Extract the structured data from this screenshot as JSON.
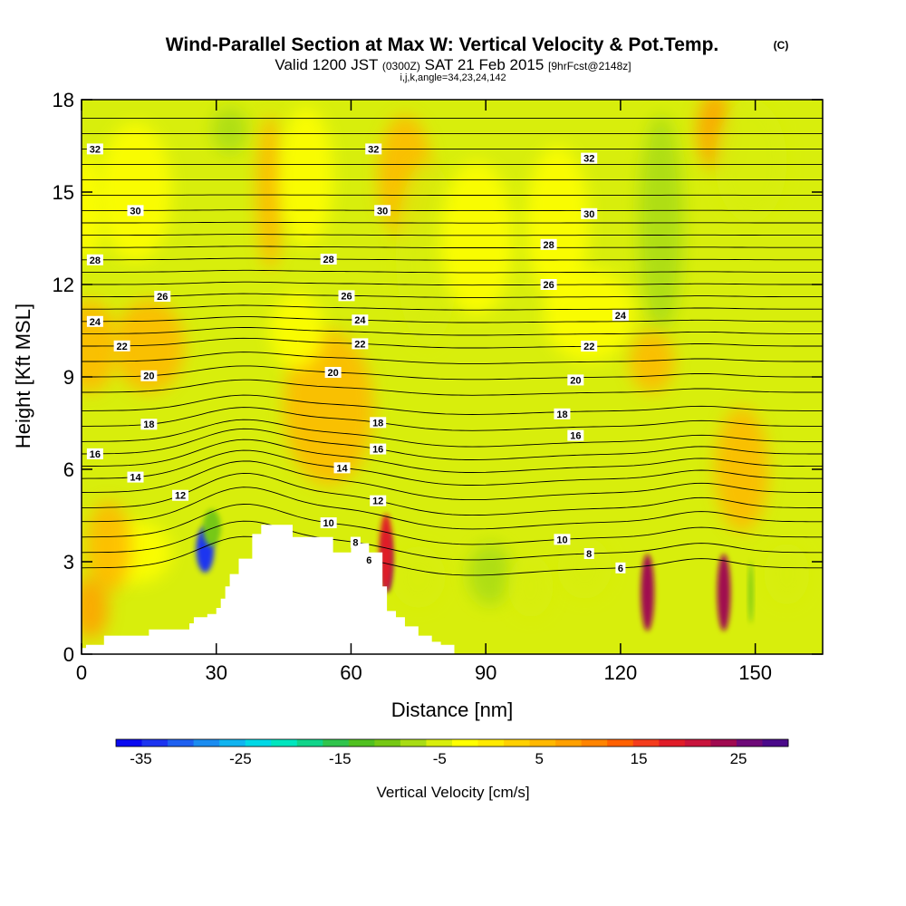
{
  "chart_data": {
    "type": "heatmap",
    "title": "Wind-Parallel Section at Max W: Vertical Velocity & Pot.Temp.",
    "copyright": "(C)",
    "subtitle_valid": "Valid 1200 JST",
    "subtitle_utc": "(0300Z)",
    "subtitle_date": "SAT 21 Feb 2015",
    "subtitle_fcst": "[9hrFcst@2148z]",
    "subtitle_indices": "i,j,k,angle=34,23,24,142",
    "xlabel": "Distance [nm]",
    "ylabel": "Height [Kft MSL]",
    "xlim": [
      0,
      165
    ],
    "ylim": [
      0,
      18
    ],
    "x_ticks": [
      "0",
      "30",
      "60",
      "90",
      "120",
      "150"
    ],
    "y_ticks": [
      "0",
      "3",
      "6",
      "9",
      "12",
      "15",
      "18"
    ],
    "colorbar": {
      "label": "Vertical Velocity [cm/s]",
      "min": -37.5,
      "max": 30,
      "step": 2.5,
      "tick_labels": [
        "-35",
        "-25",
        "-15",
        "-5",
        "5",
        "15",
        "25"
      ],
      "colors": [
        "#0a0af0",
        "#1c34f0",
        "#1e60f0",
        "#1b8cf0",
        "#10b4f0",
        "#00d8e6",
        "#00e6be",
        "#10d48a",
        "#30c44c",
        "#50c020",
        "#76c814",
        "#a8dc14",
        "#d8ee0c",
        "#ffff00",
        "#ffea00",
        "#ffd000",
        "#ffb800",
        "#ffa000",
        "#ff8400",
        "#ff6000",
        "#f43c1c",
        "#e01c28",
        "#c8143c",
        "#a00a50",
        "#6e0a78",
        "#4a0a8a"
      ]
    },
    "terrain_profile": [
      [
        0,
        0.2
      ],
      [
        1,
        0.3
      ],
      [
        5,
        0.6
      ],
      [
        10,
        0.6
      ],
      [
        14,
        0.6
      ],
      [
        15,
        0.8
      ],
      [
        20,
        0.8
      ],
      [
        24,
        1.0
      ],
      [
        25,
        1.2
      ],
      [
        28,
        1.3
      ],
      [
        30,
        1.5
      ],
      [
        31,
        1.8
      ],
      [
        32,
        2.2
      ],
      [
        33,
        2.6
      ],
      [
        35,
        3.1
      ],
      [
        38,
        3.9
      ],
      [
        40,
        4.2
      ],
      [
        45,
        4.2
      ],
      [
        47,
        3.8
      ],
      [
        52,
        3.8
      ],
      [
        55,
        3.8
      ],
      [
        56,
        3.3
      ],
      [
        58,
        3.3
      ],
      [
        60,
        3.6
      ],
      [
        62,
        3.6
      ],
      [
        64,
        3.3
      ],
      [
        65,
        3.3
      ],
      [
        67,
        2.2
      ],
      [
        68,
        1.4
      ],
      [
        70,
        1.2
      ],
      [
        72,
        0.9
      ],
      [
        75,
        0.6
      ],
      [
        78,
        0.4
      ],
      [
        80,
        0.3
      ],
      [
        83,
        0.2
      ]
    ],
    "w_background": [
      {
        "x": 1,
        "y": 14.5,
        "w": 4,
        "h": 3.5,
        "value": -4
      },
      {
        "x": 12,
        "y": 15,
        "w": 8,
        "h": 4.5,
        "value": -5
      },
      {
        "x": 33,
        "y": 17,
        "w": 4,
        "h": 1.5,
        "value": -8
      },
      {
        "x": 42,
        "y": 15,
        "w": 3,
        "h": 5,
        "value": 3
      },
      {
        "x": 50,
        "y": 15.5,
        "w": 6,
        "h": 4.5,
        "value": -5
      },
      {
        "x": 72,
        "y": 15.5,
        "w": 6,
        "h": 4,
        "value": 4
      },
      {
        "x": 77,
        "y": 13,
        "w": 7,
        "h": 6,
        "value": -6
      },
      {
        "x": 88,
        "y": 13.5,
        "w": 8,
        "h": 5,
        "value": -5
      },
      {
        "x": 106,
        "y": 14,
        "w": 7,
        "h": 5,
        "value": -5
      },
      {
        "x": 129,
        "y": 14,
        "w": 5,
        "h": 7,
        "value": -8
      },
      {
        "x": 141,
        "y": 17,
        "w": 4,
        "h": 2.5,
        "value": 6
      },
      {
        "x": 149,
        "y": 16,
        "w": 8,
        "h": 4,
        "value": -6
      },
      {
        "x": 2,
        "y": 10,
        "w": 6,
        "h": 3,
        "value": 4
      },
      {
        "x": 15,
        "y": 10,
        "w": 8,
        "h": 3,
        "value": 3
      },
      {
        "x": 55,
        "y": 8,
        "w": 10,
        "h": 5,
        "value": 3
      },
      {
        "x": 48,
        "y": 10.5,
        "w": 6,
        "h": 2.5,
        "value": -4
      },
      {
        "x": 113,
        "y": 11,
        "w": 10,
        "h": 3,
        "value": -5
      },
      {
        "x": 127,
        "y": 9.5,
        "w": 5,
        "h": 2,
        "value": 4
      },
      {
        "x": 147,
        "y": 6,
        "w": 6,
        "h": 4,
        "value": 3
      },
      {
        "x": 12,
        "y": 3.3,
        "w": 8,
        "h": 2,
        "value": -5
      },
      {
        "x": 6,
        "y": 3.5,
        "w": 5,
        "h": 3,
        "value": 4
      },
      {
        "x": 2,
        "y": 1.5,
        "w": 4,
        "h": 2,
        "value": 5
      },
      {
        "x": 75,
        "y": 2.5,
        "w": 6,
        "h": 2,
        "value": -7
      },
      {
        "x": 91,
        "y": 2.6,
        "w": 5,
        "h": 2,
        "value": -8
      },
      {
        "x": 100,
        "y": 2.2,
        "w": 5,
        "h": 2,
        "value": -7
      },
      {
        "x": 112,
        "y": 2.8,
        "w": 6,
        "h": 2,
        "value": -6
      },
      {
        "x": 157,
        "y": 2.6,
        "w": 5,
        "h": 2,
        "value": -7
      }
    ],
    "w_features": [
      {
        "x": 27.5,
        "y": 3.4,
        "w": 4,
        "h": 1.5,
        "value": -35
      },
      {
        "x": 29,
        "y": 4.1,
        "w": 4,
        "h": 1.2,
        "value": -12
      },
      {
        "x": 68,
        "y": 3,
        "w": 2.2,
        "h": 2,
        "value": 30
      },
      {
        "x": 67.8,
        "y": 3.3,
        "w": 3,
        "h": 2.5,
        "value": 17
      },
      {
        "x": 126,
        "y": 2,
        "w": 3,
        "h": 2.5,
        "value": 20
      },
      {
        "x": 143,
        "y": 2,
        "w": 3,
        "h": 2.5,
        "value": 20
      },
      {
        "x": 149,
        "y": 2,
        "w": 1,
        "h": 2,
        "value": -12
      }
    ],
    "theta_contours": [
      {
        "base": 2.8,
        "bump": 1.0,
        "label": "6",
        "label_x": 64,
        "label2_x": 120
      },
      {
        "base": 3.3,
        "bump": 1.0,
        "label": "8",
        "label_x": 61,
        "label2_x": 113
      },
      {
        "base": 3.8,
        "bump": 1.05,
        "label": "10",
        "label_x": 55,
        "label2_x": 107
      },
      {
        "base": 4.3,
        "bump": 1.1
      },
      {
        "base": 4.75,
        "bump": 1.1,
        "label": "12",
        "label_x": 22,
        "label2_x": 66
      },
      {
        "base": 5.25,
        "bump": 1.0
      },
      {
        "base": 5.7,
        "bump": 0.9,
        "label": "14",
        "label_x": 12,
        "label2_x": 58
      },
      {
        "base": 6.1,
        "bump": 0.85
      },
      {
        "base": 6.5,
        "bump": 0.8,
        "label": "16",
        "label_x": 3,
        "label2_x": 66
      },
      {
        "base": 6.9,
        "bump": 0.7
      },
      {
        "base": 7.4,
        "bump": 0.6,
        "label": "18",
        "label_x": 15,
        "label2_x": 66
      },
      {
        "base": 7.9,
        "bump": 0.5
      },
      {
        "base": 8.5,
        "bump": 0.4
      },
      {
        "base": 9.0,
        "bump": 0.35,
        "label": "20",
        "label_x": 15,
        "label2_x": 56
      },
      {
        "base": 9.5,
        "bump": 0.3
      },
      {
        "base": 10.0,
        "bump": 0.25,
        "label": "22",
        "label_x": 9,
        "label2_x": 62
      },
      {
        "base": 10.4,
        "bump": 0.2
      },
      {
        "base": 10.8,
        "bump": 0.15,
        "label": "24",
        "label_x": 3,
        "label2_x": 62
      },
      {
        "base": 11.2,
        "bump": 0.12
      },
      {
        "base": 11.6,
        "bump": 0.1,
        "label": "26",
        "label_x": 18,
        "label2_x": 59
      },
      {
        "base": 12.0,
        "bump": 0.08
      },
      {
        "base": 12.4,
        "bump": 0.06
      },
      {
        "base": 12.8,
        "bump": 0.05,
        "label": "28",
        "label_x": 3,
        "label2_x": 55
      },
      {
        "base": 13.2,
        "bump": 0.04
      },
      {
        "base": 13.6,
        "bump": 0.03
      },
      {
        "base": 14.0,
        "bump": 0.02
      },
      {
        "base": 14.4,
        "bump": 0.02,
        "label": "30",
        "label_x": 12,
        "label2_x": 67
      },
      {
        "base": 14.9,
        "bump": 0.01
      },
      {
        "base": 15.4,
        "bump": 0.0
      },
      {
        "base": 15.9,
        "bump": 0.0
      },
      {
        "base": 16.4,
        "bump": 0.0,
        "label": "32",
        "label_x": 3,
        "label2_x": 65
      },
      {
        "base": 16.9,
        "bump": 0.0
      },
      {
        "base": 17.4,
        "bump": 0.0
      }
    ],
    "extra_contour_labels": [
      {
        "text": "32",
        "x": 113,
        "y": 16.1
      },
      {
        "text": "30",
        "x": 113,
        "y": 14.3
      },
      {
        "text": "28",
        "x": 104,
        "y": 13.3
      },
      {
        "text": "26",
        "x": 104,
        "y": 12.0
      },
      {
        "text": "24",
        "x": 120,
        "y": 11.0
      },
      {
        "text": "22",
        "x": 113,
        "y": 10.0
      },
      {
        "text": "20",
        "x": 110,
        "y": 8.9
      },
      {
        "text": "18",
        "x": 107,
        "y": 7.8
      },
      {
        "text": "16",
        "x": 110,
        "y": 7.1
      }
    ]
  }
}
